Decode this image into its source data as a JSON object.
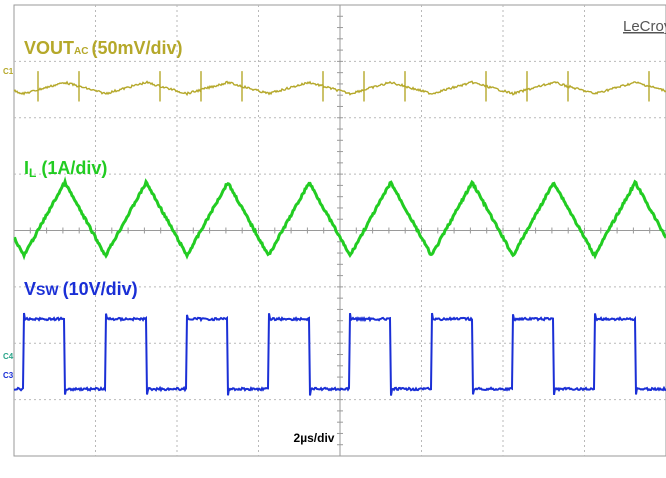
{
  "brand": "LeCroy",
  "colors": {
    "ch1": "#b5a82a",
    "ch2": "#22cc22",
    "ch3": "#1a2fd6",
    "grid": "#b9b9b9",
    "frame": "#9a9a9a"
  },
  "channels": {
    "ch1_marker": "C1",
    "ch3_marker": "C3",
    "ch4_marker": "C4"
  },
  "chart_data": {
    "type": "line",
    "grid": true,
    "timebase": "2µs/div",
    "divisions": {
      "x": 8,
      "y": 8
    },
    "period_div": 1,
    "duty_cycle": 0.5,
    "series": [
      {
        "name": "VOUT",
        "name_sub": "AC",
        "scale": "(50mV/div)",
        "waveform": "triangle ripple with switching spikes",
        "ripple_pk_pk_div": 0.2,
        "spike_pk_pk_div": 0.6
      },
      {
        "name": "I",
        "name_sub": "L",
        "scale": "(1A/div)",
        "waveform": "triangle",
        "pk_pk_div": 1.3
      },
      {
        "name": "V",
        "name_sub": "SW",
        "scale": "(10V/div)",
        "waveform": "square",
        "pk_pk_div": 1.8
      }
    ]
  }
}
